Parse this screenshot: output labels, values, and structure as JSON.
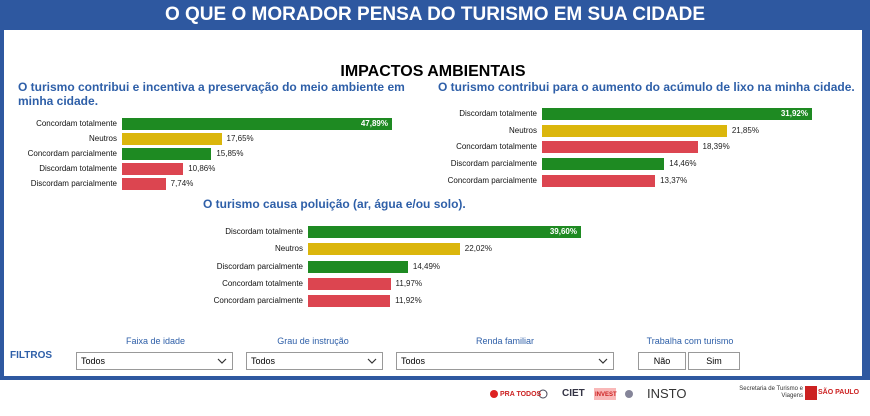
{
  "header": {
    "title": "O QUE O MORADOR PENSA DO TURISMO EM SUA CIDADE",
    "subtitle": "IMPACTOS AMBIENTAIS"
  },
  "colors": {
    "green": "#1e8a22",
    "yellow": "#dbb60c",
    "red": "#dc4550",
    "header_bg": "#2e58a0",
    "title_blue": "#2e5fa8"
  },
  "chart_data": [
    {
      "type": "bar",
      "title": "O turismo contribui e incentiva a preservação do meio ambiente em minha cidade.",
      "categories": [
        "Concordam totalmente",
        "Neutros",
        "Concordam parcialmente",
        "Discordam totalmente",
        "Discordam parcialmente"
      ],
      "values": [
        47.89,
        17.65,
        15.85,
        10.86,
        7.74
      ],
      "labels": [
        "47,89%",
        "17,65%",
        "15,85%",
        "10,86%",
        "7,74%"
      ],
      "colors": [
        "green",
        "yellow",
        "green",
        "red",
        "red"
      ]
    },
    {
      "type": "bar",
      "title": "O turismo contribui para o aumento do acúmulo de lixo na minha cidade.",
      "categories": [
        "Discordam totalmente",
        "Neutros",
        "Concordam totalmente",
        "Discordam parcialmente",
        "Concordam parcialmente"
      ],
      "values": [
        31.92,
        21.85,
        18.39,
        14.46,
        13.37
      ],
      "labels": [
        "31,92%",
        "21,85%",
        "18,39%",
        "14,46%",
        "13,37%"
      ],
      "colors": [
        "green",
        "yellow",
        "red",
        "green",
        "red"
      ]
    },
    {
      "type": "bar",
      "title": "O turismo causa poluição (ar, água e/ou solo).",
      "categories": [
        "Discordam totalmente",
        "Neutros",
        "Discordam parcialmente",
        "Concordam totalmente",
        "Concordam parcialmente"
      ],
      "values": [
        39.6,
        22.02,
        14.49,
        11.97,
        11.92
      ],
      "labels": [
        "39,60%",
        "22,02%",
        "14,49%",
        "11,97%",
        "11,92%"
      ],
      "colors": [
        "green",
        "yellow",
        "green",
        "red",
        "red"
      ]
    }
  ],
  "filters": {
    "label": "FILTROS",
    "age": {
      "label": "Faixa de idade",
      "value": "Todos"
    },
    "education": {
      "label": "Grau de instrução",
      "value": "Todos"
    },
    "income": {
      "label": "Renda familiar",
      "value": "Todos"
    },
    "tourism": {
      "label": "Trabalha com turismo",
      "no": "Não",
      "yes": "Sim"
    }
  },
  "footer": {
    "logos": [
      "PRA TODOS",
      "CIET",
      "INVEST",
      "INSTO",
      "Secretaria de Turismo e Viagens",
      "SÃO PAULO"
    ]
  }
}
